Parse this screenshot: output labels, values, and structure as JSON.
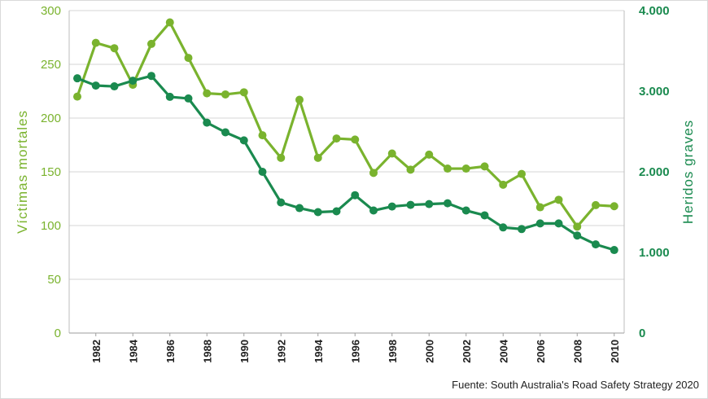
{
  "chart_data": {
    "type": "line",
    "xlabel": "",
    "ylabel_left": "Víctimas mortales",
    "ylabel_right": "Heridos graves",
    "x": [
      1981,
      1982,
      1983,
      1984,
      1985,
      1986,
      1987,
      1988,
      1989,
      1990,
      1991,
      1992,
      1993,
      1994,
      1995,
      1996,
      1997,
      1998,
      1999,
      2000,
      2001,
      2002,
      2003,
      2004,
      2005,
      2006,
      2007,
      2008,
      2009,
      2010
    ],
    "x_tick_labels": [
      "1982",
      "1984",
      "1986",
      "1988",
      "1990",
      "1992",
      "1994",
      "1996",
      "1998",
      "2000",
      "2002",
      "2004",
      "2006",
      "2008",
      "2010"
    ],
    "y_left_ticks": [
      "0",
      "50",
      "100",
      "150",
      "200",
      "250",
      "300"
    ],
    "y_right_ticks": [
      "0",
      "1.000",
      "2.000",
      "3.000",
      "4.000"
    ],
    "ylim_left": [
      0,
      300
    ],
    "ylim_right": [
      0,
      4000
    ],
    "grid": true,
    "series": [
      {
        "name": "Víctimas mortales",
        "axis": "left",
        "color": "#7ab32e",
        "values": [
          220,
          270,
          265,
          231,
          269,
          289,
          256,
          223,
          222,
          224,
          184,
          163,
          217,
          163,
          181,
          180,
          149,
          167,
          152,
          166,
          153,
          153,
          155,
          138,
          148,
          117,
          124,
          99,
          119,
          118
        ]
      },
      {
        "name": "Heridos graves",
        "axis": "right",
        "color": "#1a8a4f",
        "values": [
          3160,
          3070,
          3060,
          3130,
          3190,
          2930,
          2910,
          2610,
          2490,
          2390,
          2000,
          1620,
          1550,
          1500,
          1510,
          1710,
          1520,
          1570,
          1590,
          1600,
          1610,
          1520,
          1460,
          1310,
          1290,
          1360,
          1360,
          1210,
          1100,
          1030
        ]
      }
    ],
    "source": "Fuente: South Australia's Road Safety Strategy 2020"
  }
}
